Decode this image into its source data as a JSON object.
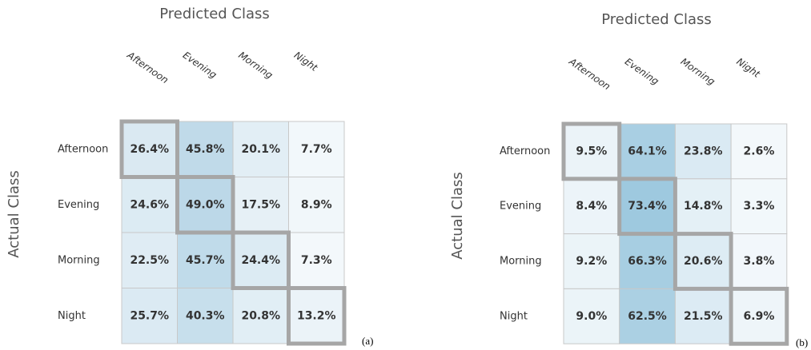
{
  "chart_data": [
    {
      "type": "heatmap",
      "title": "Predicted Class",
      "ylabel": "Actual Class",
      "caption": "(a)",
      "x_categories": [
        "Afternoon",
        "Evening",
        "Morning",
        "Night"
      ],
      "y_categories": [
        "Afternoon",
        "Evening",
        "Morning",
        "Night"
      ],
      "values": [
        [
          26.4,
          45.8,
          20.1,
          7.7
        ],
        [
          24.6,
          49.0,
          17.5,
          8.9
        ],
        [
          22.5,
          45.7,
          24.4,
          7.3
        ],
        [
          25.7,
          40.3,
          20.8,
          13.2
        ]
      ],
      "value_labels": [
        [
          "26.4%",
          "45.8%",
          "20.1%",
          "7.7%"
        ],
        [
          "24.6%",
          "49.0%",
          "17.5%",
          "8.9%"
        ],
        [
          "22.5%",
          "45.7%",
          "24.4%",
          "7.3%"
        ],
        [
          "25.7%",
          "40.3%",
          "20.8%",
          "13.2%"
        ]
      ],
      "colors": [
        "#f3f8fb",
        "#bcd8e8"
      ],
      "highlight_diagonal": true
    },
    {
      "type": "heatmap",
      "title": "Predicted Class",
      "ylabel": "Actual Class",
      "caption": "(b)",
      "x_categories": [
        "Afternoon",
        "Evening",
        "Morning",
        "Night"
      ],
      "y_categories": [
        "Afternoon",
        "Evening",
        "Morning",
        "Night"
      ],
      "values": [
        [
          9.5,
          64.1,
          23.8,
          2.6
        ],
        [
          8.4,
          73.4,
          14.8,
          3.3
        ],
        [
          9.2,
          66.3,
          20.6,
          3.8
        ],
        [
          9.0,
          62.5,
          21.5,
          6.9
        ]
      ],
      "value_labels": [
        [
          "9.5%",
          "64.1%",
          "23.8%",
          "2.6%"
        ],
        [
          "8.4%",
          "73.4%",
          "14.8%",
          "3.3%"
        ],
        [
          "9.2%",
          "66.3%",
          "20.6%",
          "3.8%"
        ],
        [
          "9.0%",
          "62.5%",
          "21.5%",
          "6.9%"
        ]
      ],
      "colors": [
        "#f3f8fb",
        "#9ec9df"
      ],
      "highlight_diagonal": true
    }
  ]
}
